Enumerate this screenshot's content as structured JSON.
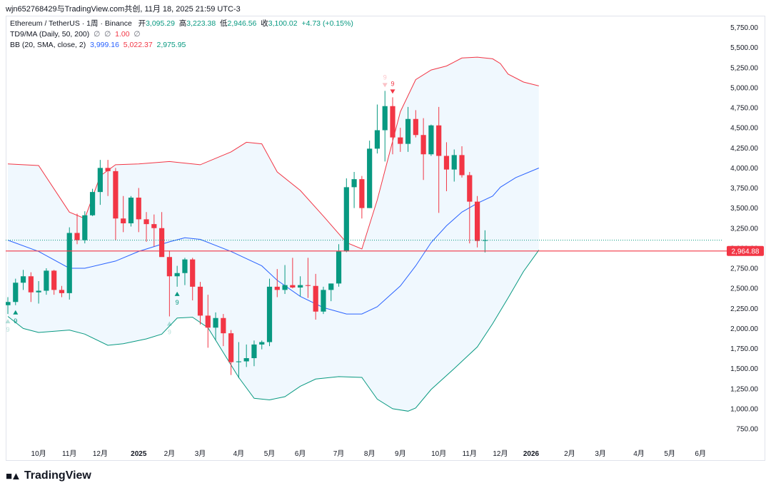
{
  "caption": "wjn652768429与TradingView.com共创, 11月 18, 2025 21:59 UTC-3",
  "legend": {
    "symbol": "Ethereum / TetherUS · 1周 · Binance",
    "open_label": "开",
    "open": "3,095.29",
    "high_label": "高",
    "high": "3,223.38",
    "low_label": "低",
    "low": "2,946.56",
    "close_label": "收",
    "close": "3,100.02",
    "change": "+4.73 (+0.15%)",
    "td9": "TD9/MA (Daily, 50, 200)",
    "td9_val1": "∅",
    "td9_val2": "∅",
    "td9_val3": "1.00",
    "td9_val4": "∅",
    "bb": "BB (20, SMA, close, 2)",
    "bb_mid": "3,999.16",
    "bb_upper": "5,022.37",
    "bb_lower": "2,975.95"
  },
  "price_label": "2,964.88",
  "logo_text": "TradingView",
  "colors": {
    "up": "#089981",
    "down": "#f23645",
    "basis": "#2962ff",
    "upper": "#f23645",
    "lower": "#089981",
    "fill": "#e3f2fd"
  },
  "chart_data": {
    "type": "candlestick",
    "title": "Ethereum / TetherUS · 1周 · Binance",
    "ylim": [
      610,
      5850
    ],
    "y_ticks": [
      "5,750.00",
      "5,500.00",
      "5,250.00",
      "5,000.00",
      "4,750.00",
      "4,500.00",
      "4,250.00",
      "4,000.00",
      "3,750.00",
      "3,500.00",
      "3,250.00",
      "3,000.00",
      "2,750.00",
      "2,500.00",
      "2,250.00",
      "2,000.00",
      "1,750.00",
      "1,500.00",
      "1,250.00",
      "1,000.00",
      "750.00"
    ],
    "y_tick_values": [
      5750,
      5500,
      5250,
      5000,
      4750,
      4500,
      4250,
      4000,
      3750,
      3500,
      3250,
      3000,
      2750,
      2500,
      2250,
      2000,
      1750,
      1500,
      1250,
      1000,
      750
    ],
    "x_ticks": [
      {
        "label": "10月",
        "week": 4
      },
      {
        "label": "11月",
        "week": 8
      },
      {
        "label": "12月",
        "week": 12
      },
      {
        "label": "2025",
        "week": 17
      },
      {
        "label": "2月",
        "week": 21
      },
      {
        "label": "3月",
        "week": 25
      },
      {
        "label": "4月",
        "week": 30
      },
      {
        "label": "5月",
        "week": 34
      },
      {
        "label": "6月",
        "week": 38
      },
      {
        "label": "7月",
        "week": 43
      },
      {
        "label": "8月",
        "week": 47
      },
      {
        "label": "9月",
        "week": 51
      },
      {
        "label": "10月",
        "week": 56
      },
      {
        "label": "11月",
        "week": 60
      },
      {
        "label": "12月",
        "week": 64
      },
      {
        "label": "2026",
        "week": 68
      },
      {
        "label": "2月",
        "week": 73
      },
      {
        "label": "3月",
        "week": 77
      },
      {
        "label": "4月",
        "week": 82
      },
      {
        "label": "5月",
        "week": 86
      },
      {
        "label": "6月",
        "week": 90
      }
    ],
    "candles": [
      {
        "o": 2290,
        "h": 2390,
        "l": 2180,
        "c": 2330
      },
      {
        "o": 2330,
        "h": 2620,
        "l": 2290,
        "c": 2570
      },
      {
        "o": 2570,
        "h": 2730,
        "l": 2480,
        "c": 2650
      },
      {
        "o": 2650,
        "h": 2700,
        "l": 2330,
        "c": 2450
      },
      {
        "o": 2450,
        "h": 2590,
        "l": 2310,
        "c": 2470
      },
      {
        "o": 2470,
        "h": 2750,
        "l": 2420,
        "c": 2720
      },
      {
        "o": 2720,
        "h": 2730,
        "l": 2420,
        "c": 2480
      },
      {
        "o": 2480,
        "h": 2530,
        "l": 2390,
        "c": 2440
      },
      {
        "o": 2440,
        "h": 3260,
        "l": 2360,
        "c": 3190
      },
      {
        "o": 3190,
        "h": 3430,
        "l": 3050,
        "c": 3100
      },
      {
        "o": 3100,
        "h": 3460,
        "l": 3060,
        "c": 3410
      },
      {
        "o": 3410,
        "h": 3740,
        "l": 3400,
        "c": 3700
      },
      {
        "o": 3700,
        "h": 4100,
        "l": 3540,
        "c": 4000
      },
      {
        "o": 4000,
        "h": 4100,
        "l": 3650,
        "c": 3960
      },
      {
        "o": 3960,
        "h": 4000,
        "l": 3100,
        "c": 3370
      },
      {
        "o": 3370,
        "h": 3650,
        "l": 3200,
        "c": 3310
      },
      {
        "o": 3310,
        "h": 3650,
        "l": 3270,
        "c": 3630
      },
      {
        "o": 3630,
        "h": 3750,
        "l": 3200,
        "c": 3360
      },
      {
        "o": 3360,
        "h": 3450,
        "l": 3080,
        "c": 3300
      },
      {
        "o": 3300,
        "h": 3420,
        "l": 3020,
        "c": 3250
      },
      {
        "o": 3250,
        "h": 3450,
        "l": 2920,
        "c": 2890
      },
      {
        "o": 2890,
        "h": 2970,
        "l": 2150,
        "c": 2650
      },
      {
        "o": 2650,
        "h": 2780,
        "l": 2520,
        "c": 2690
      },
      {
        "o": 2690,
        "h": 2880,
        "l": 2540,
        "c": 2860
      },
      {
        "o": 2860,
        "h": 2880,
        "l": 2350,
        "c": 2520
      },
      {
        "o": 2520,
        "h": 2580,
        "l": 2050,
        "c": 2160
      },
      {
        "o": 2160,
        "h": 2420,
        "l": 1760,
        "c": 2010
      },
      {
        "o": 2010,
        "h": 2200,
        "l": 1850,
        "c": 2130
      },
      {
        "o": 2130,
        "h": 2180,
        "l": 1780,
        "c": 1940
      },
      {
        "o": 1940,
        "h": 1980,
        "l": 1420,
        "c": 1580
      },
      {
        "o": 1580,
        "h": 1830,
        "l": 1380,
        "c": 1590
      },
      {
        "o": 1590,
        "h": 1800,
        "l": 1520,
        "c": 1630
      },
      {
        "o": 1630,
        "h": 1850,
        "l": 1530,
        "c": 1800
      },
      {
        "o": 1800,
        "h": 1850,
        "l": 1740,
        "c": 1830
      },
      {
        "o": 1830,
        "h": 2620,
        "l": 1780,
        "c": 2520
      },
      {
        "o": 2520,
        "h": 2740,
        "l": 2390,
        "c": 2480
      },
      {
        "o": 2480,
        "h": 2790,
        "l": 2430,
        "c": 2540
      },
      {
        "o": 2540,
        "h": 2880,
        "l": 2500,
        "c": 2510
      },
      {
        "o": 2510,
        "h": 2650,
        "l": 2400,
        "c": 2540
      },
      {
        "o": 2540,
        "h": 2880,
        "l": 2380,
        "c": 2530
      },
      {
        "o": 2530,
        "h": 2680,
        "l": 2110,
        "c": 2210
      },
      {
        "o": 2210,
        "h": 2520,
        "l": 2180,
        "c": 2480
      },
      {
        "o": 2480,
        "h": 2560,
        "l": 2340,
        "c": 2560
      },
      {
        "o": 2560,
        "h": 3050,
        "l": 2520,
        "c": 2960
      },
      {
        "o": 2960,
        "h": 3870,
        "l": 2950,
        "c": 3760
      },
      {
        "o": 3760,
        "h": 3950,
        "l": 3500,
        "c": 3860
      },
      {
        "o": 3860,
        "h": 3900,
        "l": 3370,
        "c": 3500
      },
      {
        "o": 3500,
        "h": 4340,
        "l": 3500,
        "c": 4240
      },
      {
        "o": 4240,
        "h": 4790,
        "l": 4180,
        "c": 4470
      },
      {
        "o": 4470,
        "h": 4960,
        "l": 4080,
        "c": 4770
      },
      {
        "o": 4770,
        "h": 4880,
        "l": 4170,
        "c": 4380
      },
      {
        "o": 4380,
        "h": 4500,
        "l": 4200,
        "c": 4300
      },
      {
        "o": 4300,
        "h": 4760,
        "l": 4200,
        "c": 4610
      },
      {
        "o": 4610,
        "h": 4720,
        "l": 4380,
        "c": 4410
      },
      {
        "o": 4410,
        "h": 4620,
        "l": 3850,
        "c": 4170
      },
      {
        "o": 4170,
        "h": 4540,
        "l": 4150,
        "c": 4530
      },
      {
        "o": 4530,
        "h": 4760,
        "l": 3440,
        "c": 4150
      },
      {
        "o": 4150,
        "h": 4320,
        "l": 3710,
        "c": 3980
      },
      {
        "o": 3980,
        "h": 4230,
        "l": 3830,
        "c": 4160
      },
      {
        "o": 4160,
        "h": 4270,
        "l": 3880,
        "c": 3910
      },
      {
        "o": 3910,
        "h": 3950,
        "l": 3060,
        "c": 3580
      },
      {
        "o": 3580,
        "h": 3650,
        "l": 3010,
        "c": 3090
      },
      {
        "o": 3095,
        "h": 3223,
        "l": 2947,
        "c": 3100
      }
    ],
    "bb_upper": [
      [
        0,
        4050
      ],
      [
        4,
        4030
      ],
      [
        8,
        3450
      ],
      [
        10,
        3370
      ],
      [
        12,
        3900
      ],
      [
        14,
        4040
      ],
      [
        17,
        4050
      ],
      [
        21,
        4080
      ],
      [
        25,
        4040
      ],
      [
        29,
        4200
      ],
      [
        31,
        4320
      ],
      [
        33,
        4300
      ],
      [
        35,
        3950
      ],
      [
        38,
        3720
      ],
      [
        41,
        3400
      ],
      [
        44,
        3070
      ],
      [
        46,
        2990
      ],
      [
        48,
        3600
      ],
      [
        51,
        4700
      ],
      [
        53,
        5100
      ],
      [
        55,
        5220
      ],
      [
        57,
        5270
      ],
      [
        59,
        5370
      ],
      [
        61,
        5380
      ],
      [
        63,
        5360
      ],
      [
        64,
        5300
      ],
      [
        65,
        5170
      ],
      [
        67,
        5070
      ],
      [
        69,
        5022
      ]
    ],
    "bb_basis": [
      [
        0,
        3100
      ],
      [
        4,
        2960
      ],
      [
        8,
        2750
      ],
      [
        10,
        2750
      ],
      [
        14,
        2840
      ],
      [
        17,
        2960
      ],
      [
        21,
        3080
      ],
      [
        23,
        3130
      ],
      [
        25,
        3110
      ],
      [
        29,
        2960
      ],
      [
        33,
        2780
      ],
      [
        35,
        2600
      ],
      [
        38,
        2400
      ],
      [
        41,
        2260
      ],
      [
        44,
        2180
      ],
      [
        46,
        2180
      ],
      [
        48,
        2270
      ],
      [
        51,
        2530
      ],
      [
        53,
        2780
      ],
      [
        55,
        3070
      ],
      [
        57,
        3280
      ],
      [
        59,
        3450
      ],
      [
        61,
        3560
      ],
      [
        63,
        3650
      ],
      [
        64,
        3760
      ],
      [
        66,
        3880
      ],
      [
        69,
        3999
      ]
    ],
    "bb_lower": [
      [
        0,
        2150
      ],
      [
        2,
        2000
      ],
      [
        4,
        1950
      ],
      [
        8,
        1980
      ],
      [
        10,
        1930
      ],
      [
        13,
        1790
      ],
      [
        15,
        1810
      ],
      [
        18,
        1870
      ],
      [
        20,
        1930
      ],
      [
        22,
        2130
      ],
      [
        24,
        2140
      ],
      [
        26,
        2010
      ],
      [
        28,
        1700
      ],
      [
        30,
        1390
      ],
      [
        32,
        1130
      ],
      [
        34,
        1110
      ],
      [
        36,
        1150
      ],
      [
        38,
        1280
      ],
      [
        40,
        1370
      ],
      [
        43,
        1400
      ],
      [
        46,
        1390
      ],
      [
        48,
        1120
      ],
      [
        50,
        1000
      ],
      [
        52,
        970
      ],
      [
        53,
        1010
      ],
      [
        55,
        1240
      ],
      [
        58,
        1500
      ],
      [
        61,
        1770
      ],
      [
        63,
        2060
      ],
      [
        65,
        2380
      ],
      [
        67,
        2710
      ],
      [
        69,
        2976
      ]
    ],
    "price_line": 2964.88,
    "last_close_dotted": 3100.02,
    "td9_markers": [
      {
        "week": 0,
        "side": "buy",
        "label": "9",
        "faded": true
      },
      {
        "week": 1,
        "side": "buy",
        "label": "9",
        "faded": false
      },
      {
        "week": 22,
        "side": "buy",
        "label": "9",
        "faded": false
      },
      {
        "week": 21,
        "side": "buy",
        "label": "9",
        "faded": true
      },
      {
        "week": 50,
        "side": "sell",
        "label": "9",
        "faded": false
      },
      {
        "week": 49,
        "side": "sell",
        "label": "9",
        "faded": true
      }
    ]
  }
}
